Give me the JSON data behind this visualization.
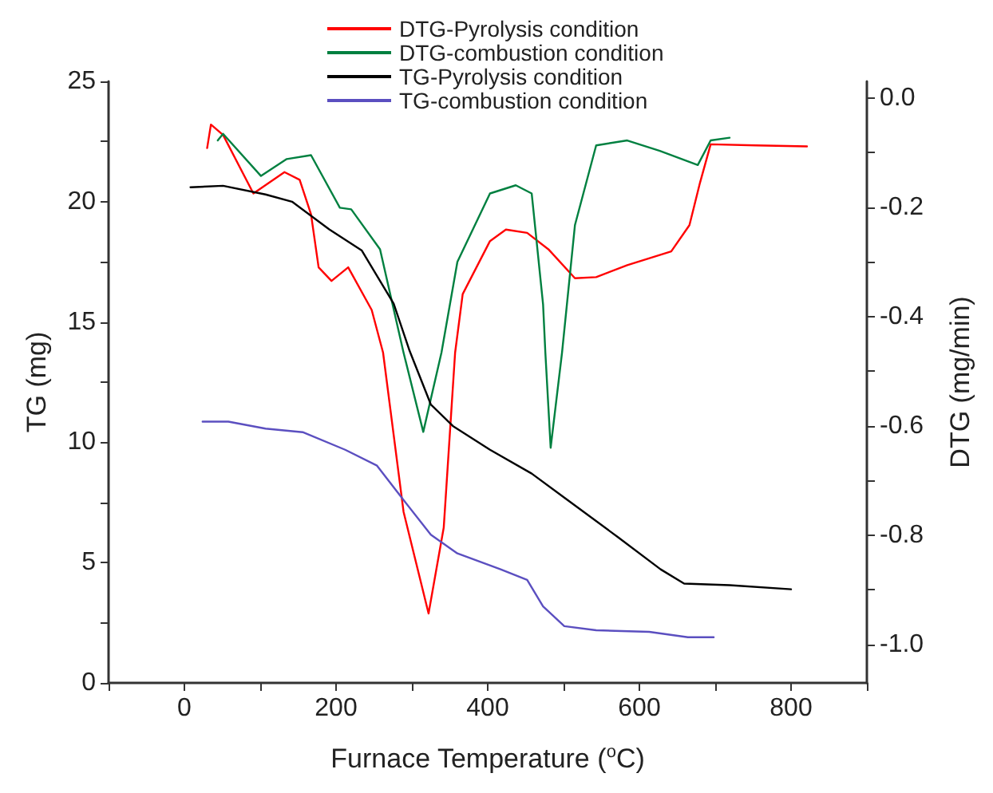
{
  "chart_data": {
    "type": "line",
    "xlabel": "Furnace Temperature ($^{o}$C)",
    "ylabel": "TG (mg)",
    "y2label": "DTG (mg/min)",
    "legend": "top",
    "grid": false,
    "xlim": [
      -100,
      900
    ],
    "xticks": [
      {
        "value": -100,
        "label": null
      },
      0,
      {
        "value": 100,
        "label": null
      },
      200,
      {
        "value": 300,
        "label": null
      },
      400,
      {
        "value": 500,
        "label": null
      },
      600,
      {
        "value": 700,
        "label": null
      },
      800,
      {
        "value": 900,
        "label": null
      }
    ],
    "ylim": [
      0,
      25
    ],
    "yticks": [
      0,
      {
        "value": 2.5,
        "label": null
      },
      5,
      {
        "value": 7.5,
        "label": null
      },
      10,
      {
        "value": 12.5,
        "label": null
      },
      15,
      {
        "value": 17.5,
        "label": null
      },
      20,
      {
        "value": 22.5,
        "label": null
      },
      25
    ],
    "y2lim": [
      -1.07,
      0.03
    ],
    "y2ticks": [
      {
        "value": 0,
        "label": "0.0"
      },
      {
        "value": -0.1,
        "label": null
      },
      {
        "value": -0.2,
        "label": "-0.2"
      },
      {
        "value": -0.3,
        "label": null
      },
      {
        "value": -0.4,
        "label": "-0.4"
      },
      {
        "value": -0.5,
        "label": null
      },
      {
        "value": -0.6,
        "label": "-0.6"
      },
      {
        "value": -0.7,
        "label": null
      },
      {
        "value": -0.8,
        "label": "-0.8"
      },
      {
        "value": -0.9,
        "label": null
      },
      {
        "value": -1.0,
        "label": "-1.0"
      }
    ],
    "series": [
      {
        "name": "DTG-Pyrolysis condition",
        "color": "#ff0000",
        "axis": "y2",
        "x": [
          30,
          35,
          51,
          91,
          132,
          152,
          167,
          177,
          194,
          216,
          247,
          262,
          289,
          322,
          342,
          357,
          367,
          403,
          424,
          452,
          480,
          515,
          543,
          584,
          642,
          666,
          680,
          694,
          754,
          821
        ],
        "values": [
          -0.092,
          -0.049,
          -0.068,
          -0.175,
          -0.136,
          -0.15,
          -0.213,
          -0.31,
          -0.335,
          -0.31,
          -0.388,
          -0.466,
          -0.757,
          -0.943,
          -0.786,
          -0.466,
          -0.359,
          -0.262,
          -0.241,
          -0.247,
          -0.277,
          -0.33,
          -0.328,
          -0.306,
          -0.281,
          -0.233,
          -0.155,
          -0.085,
          -0.087,
          -0.089
        ]
      },
      {
        "name": "DTG-combustion condition",
        "color": "#008040",
        "axis": "y2",
        "x": [
          44,
          51,
          101,
          135,
          167,
          205,
          220,
          258,
          289,
          315,
          339,
          360,
          403,
          437,
          458,
          473,
          476,
          483,
          498,
          515,
          543,
          584,
          627,
          677,
          694,
          719
        ],
        "values": [
          -0.078,
          -0.066,
          -0.143,
          -0.112,
          -0.105,
          -0.201,
          -0.204,
          -0.277,
          -0.466,
          -0.611,
          -0.466,
          -0.3,
          -0.175,
          -0.16,
          -0.175,
          -0.378,
          -0.466,
          -0.64,
          -0.466,
          -0.233,
          -0.087,
          -0.078,
          -0.097,
          -0.123,
          -0.078,
          -0.073
        ]
      },
      {
        "name": "TG-Pyrolysis condition",
        "color": "#000000",
        "x": [
          8,
          51,
          107,
          142,
          191,
          234,
          276,
          297,
          325,
          354,
          403,
          458,
          501,
          572,
          628,
          659,
          719,
          800
        ],
        "values": [
          20.6,
          20.66,
          20.3,
          20.0,
          18.85,
          17.97,
          15.76,
          13.8,
          11.57,
          10.68,
          9.69,
          8.7,
          7.7,
          6.05,
          4.72,
          4.13,
          4.06,
          3.89
        ]
      },
      {
        "name": "TG-combustion condition",
        "color": "#5b4fc0",
        "x": [
          24,
          58,
          107,
          156,
          212,
          254,
          289,
          325,
          360,
          417,
          452,
          473,
          501,
          543,
          613,
          664,
          698
        ],
        "values": [
          10.86,
          10.86,
          10.57,
          10.42,
          9.69,
          9.03,
          7.6,
          6.16,
          5.38,
          4.72,
          4.28,
          3.18,
          2.36,
          2.19,
          2.12,
          1.9,
          1.9
        ]
      }
    ]
  }
}
